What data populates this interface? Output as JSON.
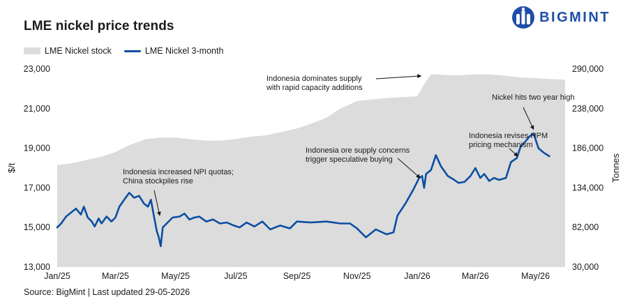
{
  "header": {
    "title": "LME nickel price trends",
    "brand": "BIGMINT"
  },
  "legend": {
    "stock_label": "LME Nickel stock",
    "price_label": "LME Nickel 3-month"
  },
  "footer": {
    "source": "Source: BigMint | Last updated 29-05-2026"
  },
  "colors": {
    "price": "#0b4ea2",
    "stock": "#dcdcdc",
    "brand": "#1e4ea8"
  },
  "chart_data": {
    "type": "line",
    "ylabel": "$/t",
    "y2label": "Tonnes",
    "ylim": [
      13000,
      23000
    ],
    "y2lim": [
      30000,
      290000
    ],
    "xlim": [
      "2025-01-01",
      "2026-05-31"
    ],
    "grid": false,
    "legend_position": "top-left",
    "x_tick_labels": [
      "Jan/25",
      "Mar/25",
      "May/25",
      "Jul/25",
      "Sep/25",
      "Nov/25",
      "Jan/26",
      "Mar/26",
      "May/26"
    ],
    "x_tick_dates": [
      "2025-01-01",
      "2025-03-01",
      "2025-05-01",
      "2025-07-01",
      "2025-09-01",
      "2025-11-01",
      "2026-01-01",
      "2026-03-01",
      "2026-05-01"
    ],
    "y_tick_labels": [
      "13,000",
      "15,000",
      "17,000",
      "19,000",
      "21,000",
      "23,000"
    ],
    "y_tick_values": [
      13000,
      15000,
      17000,
      19000,
      21000,
      23000
    ],
    "y2_tick_labels": [
      "30,000",
      "82,000",
      "134,000",
      "186,000",
      "238,000",
      "290,000"
    ],
    "y2_tick_values": [
      30000,
      82000,
      134000,
      186000,
      238000,
      290000
    ],
    "series": [
      {
        "name": "LME Nickel stock",
        "kind": "area",
        "axis": "right",
        "points": [
          [
            "2025-01-01",
            164000
          ],
          [
            "2025-01-15",
            166000
          ],
          [
            "2025-02-01",
            171000
          ],
          [
            "2025-02-15",
            175000
          ],
          [
            "2025-03-01",
            181000
          ],
          [
            "2025-03-15",
            190000
          ],
          [
            "2025-04-01",
            198000
          ],
          [
            "2025-04-15",
            200000
          ],
          [
            "2025-05-01",
            200000
          ],
          [
            "2025-05-15",
            198000
          ],
          [
            "2025-06-01",
            196000
          ],
          [
            "2025-06-15",
            196000
          ],
          [
            "2025-07-01",
            198000
          ],
          [
            "2025-07-15",
            201000
          ],
          [
            "2025-08-01",
            203000
          ],
          [
            "2025-08-15",
            207000
          ],
          [
            "2025-09-01",
            212000
          ],
          [
            "2025-09-15",
            218000
          ],
          [
            "2025-10-01",
            226000
          ],
          [
            "2025-10-15",
            238000
          ],
          [
            "2025-11-01",
            248000
          ],
          [
            "2025-11-15",
            250000
          ],
          [
            "2025-12-01",
            252000
          ],
          [
            "2025-12-15",
            253000
          ],
          [
            "2026-01-01",
            254000
          ],
          [
            "2026-01-08",
            270000
          ],
          [
            "2026-01-15",
            283000
          ],
          [
            "2026-02-01",
            282000
          ],
          [
            "2026-02-15",
            282000
          ],
          [
            "2026-03-01",
            283000
          ],
          [
            "2026-03-15",
            283000
          ],
          [
            "2026-04-01",
            281000
          ],
          [
            "2026-04-15",
            279000
          ],
          [
            "2026-05-01",
            278000
          ],
          [
            "2026-05-15",
            277000
          ],
          [
            "2026-05-31",
            276000
          ]
        ]
      },
      {
        "name": "LME Nickel 3-month",
        "kind": "line",
        "axis": "left",
        "points": [
          [
            "2025-01-01",
            15000
          ],
          [
            "2025-01-05",
            15200
          ],
          [
            "2025-01-10",
            15550
          ],
          [
            "2025-01-15",
            15750
          ],
          [
            "2025-01-20",
            15950
          ],
          [
            "2025-01-25",
            15650
          ],
          [
            "2025-01-28",
            16050
          ],
          [
            "2025-02-01",
            15500
          ],
          [
            "2025-02-05",
            15300
          ],
          [
            "2025-02-08",
            15050
          ],
          [
            "2025-02-12",
            15450
          ],
          [
            "2025-02-15",
            15200
          ],
          [
            "2025-02-20",
            15550
          ],
          [
            "2025-02-25",
            15300
          ],
          [
            "2025-03-01",
            15500
          ],
          [
            "2025-03-05",
            16050
          ],
          [
            "2025-03-10",
            16400
          ],
          [
            "2025-03-15",
            16750
          ],
          [
            "2025-03-20",
            16500
          ],
          [
            "2025-03-25",
            16600
          ],
          [
            "2025-03-30",
            16200
          ],
          [
            "2025-04-03",
            16050
          ],
          [
            "2025-04-06",
            16400
          ],
          [
            "2025-04-09",
            15600
          ],
          [
            "2025-04-12",
            14800
          ],
          [
            "2025-04-14",
            14500
          ],
          [
            "2025-04-16",
            14050
          ],
          [
            "2025-04-18",
            15000
          ],
          [
            "2025-04-22",
            15200
          ],
          [
            "2025-04-28",
            15500
          ],
          [
            "2025-05-05",
            15550
          ],
          [
            "2025-05-10",
            15700
          ],
          [
            "2025-05-15",
            15400
          ],
          [
            "2025-05-20",
            15500
          ],
          [
            "2025-05-25",
            15550
          ],
          [
            "2025-06-01",
            15300
          ],
          [
            "2025-06-08",
            15400
          ],
          [
            "2025-06-15",
            15200
          ],
          [
            "2025-06-22",
            15250
          ],
          [
            "2025-06-29",
            15100
          ],
          [
            "2025-07-05",
            15000
          ],
          [
            "2025-07-12",
            15250
          ],
          [
            "2025-07-20",
            15050
          ],
          [
            "2025-07-28",
            15300
          ],
          [
            "2025-08-05",
            14900
          ],
          [
            "2025-08-15",
            15100
          ],
          [
            "2025-08-25",
            14950
          ],
          [
            "2025-09-01",
            15300
          ],
          [
            "2025-09-15",
            15250
          ],
          [
            "2025-10-01",
            15300
          ],
          [
            "2025-10-15",
            15200
          ],
          [
            "2025-10-25",
            15200
          ],
          [
            "2025-11-01",
            14950
          ],
          [
            "2025-11-10",
            14500
          ],
          [
            "2025-11-20",
            14900
          ],
          [
            "2025-12-01",
            14650
          ],
          [
            "2025-12-08",
            14750
          ],
          [
            "2025-12-12",
            15600
          ],
          [
            "2025-12-20",
            16200
          ],
          [
            "2025-12-28",
            16900
          ],
          [
            "2026-01-03",
            17500
          ],
          [
            "2026-01-06",
            17600
          ],
          [
            "2026-01-08",
            17000
          ],
          [
            "2026-01-10",
            17700
          ],
          [
            "2026-01-15",
            17900
          ],
          [
            "2026-01-20",
            18650
          ],
          [
            "2026-01-25",
            18100
          ],
          [
            "2026-02-01",
            17600
          ],
          [
            "2026-02-06",
            17450
          ],
          [
            "2026-02-12",
            17250
          ],
          [
            "2026-02-18",
            17300
          ],
          [
            "2026-02-24",
            17600
          ],
          [
            "2026-03-01",
            18000
          ],
          [
            "2026-03-06",
            17500
          ],
          [
            "2026-03-10",
            17700
          ],
          [
            "2026-03-15",
            17350
          ],
          [
            "2026-03-20",
            17500
          ],
          [
            "2026-03-25",
            17400
          ],
          [
            "2026-04-01",
            17500
          ],
          [
            "2026-04-06",
            18300
          ],
          [
            "2026-04-12",
            18500
          ],
          [
            "2026-04-16",
            19100
          ],
          [
            "2026-04-20",
            19300
          ],
          [
            "2026-04-25",
            19600
          ],
          [
            "2026-04-29",
            19750
          ],
          [
            "2026-05-04",
            19000
          ],
          [
            "2026-05-10",
            18750
          ],
          [
            "2026-05-15",
            18600
          ]
        ]
      }
    ],
    "annotations": [
      {
        "id": "npi",
        "text": [
          "Indonesia increased NPI quotas;",
          "China stockpiles rise"
        ],
        "target": [
          "2025-04-15",
          15600
        ]
      },
      {
        "id": "supply",
        "text": [
          "Indonesia dominates supply",
          "with rapid capacity additions"
        ],
        "target": [
          "2026-01-05",
          22650
        ]
      },
      {
        "id": "ore",
        "text": [
          "Indonesia ore supply concerns",
          "trigger speculative buying"
        ],
        "target": [
          "2026-01-04",
          17500
        ]
      },
      {
        "id": "hpm",
        "text": [
          "Indonesia revises HPM",
          "pricing mechanism"
        ],
        "target": [
          "2026-04-13",
          18600
        ]
      },
      {
        "id": "high",
        "text": [
          "Nickel hits two year high"
        ],
        "target": [
          "2026-04-29",
          19950
        ]
      }
    ]
  }
}
